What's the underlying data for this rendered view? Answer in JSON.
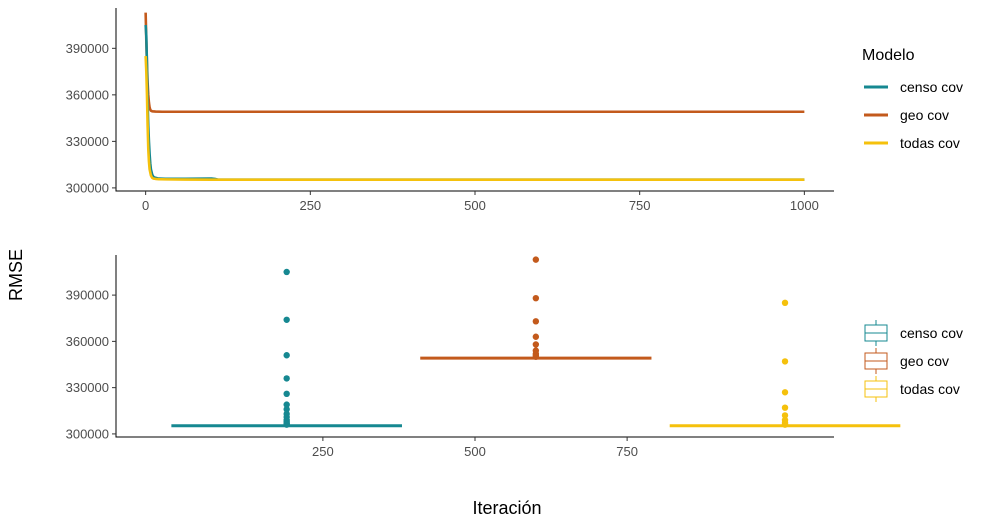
{
  "labels": {
    "xlabel": "Iteración",
    "ylabel": "RMSE",
    "legend_title": "Modelo"
  },
  "colors": {
    "censo cov": "#168891",
    "geo cov": "#c35a1c",
    "todas cov": "#f5c10c",
    "axis": "#000000",
    "tick_text": "#4d4d4d"
  },
  "chart_data": [
    {
      "type": "line",
      "title": "",
      "xlabel": "Iteración",
      "ylabel": "RMSE",
      "xlim": [
        -45,
        1045
      ],
      "ylim": [
        298000,
        416000
      ],
      "xticks": [
        0,
        250,
        500,
        750,
        1000
      ],
      "yticks": [
        300000,
        330000,
        360000,
        390000
      ],
      "legend": {
        "title": "Modelo",
        "position": "right",
        "entries": [
          "censo cov",
          "geo cov",
          "todas cov"
        ]
      },
      "series": [
        {
          "name": "geo cov",
          "x": [
            0,
            1,
            2,
            3,
            4,
            5,
            6,
            7,
            8,
            10,
            15,
            25,
            50,
            100,
            1000
          ],
          "y": [
            413000,
            395000,
            380000,
            368000,
            360000,
            355000,
            352000,
            350500,
            349800,
            349400,
            349200,
            349100,
            349100,
            349100,
            349100
          ]
        },
        {
          "name": "censo cov",
          "x": [
            0,
            1,
            2,
            3,
            4,
            5,
            6,
            7,
            8,
            10,
            12,
            15,
            20,
            30,
            60,
            100,
            105,
            110,
            1000
          ],
          "y": [
            405000,
            398000,
            380000,
            355000,
            340000,
            330000,
            322000,
            316000,
            312000,
            308500,
            307000,
            306500,
            306000,
            305900,
            305900,
            306000,
            305800,
            305300,
            305300
          ]
        },
        {
          "name": "todas cov",
          "x": [
            0,
            1,
            2,
            3,
            4,
            5,
            6,
            8,
            10,
            12,
            15,
            20,
            30,
            60,
            100,
            1000
          ],
          "y": [
            385000,
            375000,
            360000,
            340000,
            325000,
            317000,
            312000,
            308000,
            306500,
            306000,
            305800,
            305600,
            305500,
            305400,
            305300,
            305300
          ]
        }
      ]
    },
    {
      "type": "boxplot",
      "title": "",
      "xlabel": "Iteración",
      "ylabel": "RMSE",
      "xlim": [
        -90,
        1090
      ],
      "ylim": [
        298000,
        416000
      ],
      "xticks": [
        250,
        500,
        750
      ],
      "yticks": [
        300000,
        330000,
        360000,
        390000
      ],
      "legend": {
        "position": "right",
        "entries": [
          "censo cov",
          "geo cov",
          "todas cov"
        ]
      },
      "series": [
        {
          "name": "censo cov",
          "x_range": [
            1,
            380
          ],
          "median": 305300,
          "outliers": [
            405000,
            374000,
            351000,
            336000,
            326000,
            319000,
            316000,
            313000,
            311000,
            309000,
            308000,
            307000,
            306500,
            306000
          ]
        },
        {
          "name": "geo cov",
          "x_range": [
            410,
            790
          ],
          "median": 349100,
          "outliers": [
            413000,
            388000,
            373000,
            363000,
            358000,
            354000,
            352000,
            351000,
            350000
          ]
        },
        {
          "name": "todas cov",
          "x_range": [
            820,
            1199
          ],
          "median": 305300,
          "outliers": [
            385000,
            347000,
            327000,
            317000,
            312000,
            309000,
            307500,
            306500,
            306000
          ]
        }
      ]
    }
  ]
}
